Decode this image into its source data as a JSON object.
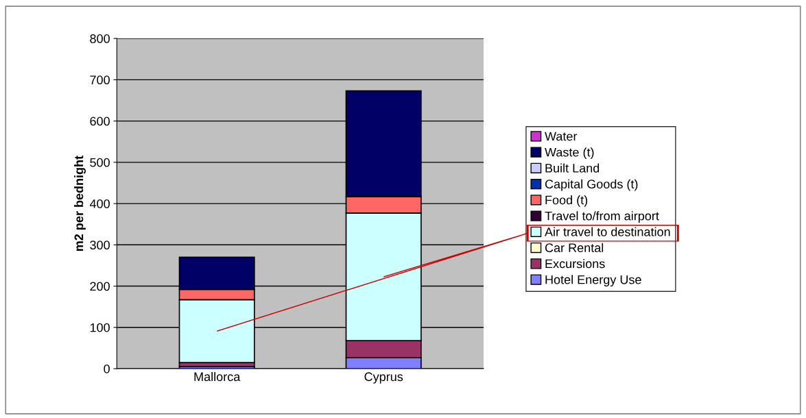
{
  "chart_data": {
    "type": "bar",
    "stacked": true,
    "ylabel": "m2 per bednight",
    "categories": [
      "Mallorca",
      "Cyprus"
    ],
    "series": [
      {
        "name": "Hotel Energy Use",
        "color": "#8080ff",
        "values": [
          5,
          27
        ]
      },
      {
        "name": "Excursions",
        "color": "#993366",
        "values": [
          10,
          41
        ]
      },
      {
        "name": "Car Rental",
        "color": "#ffffcc",
        "values": [
          0,
          0
        ]
      },
      {
        "name": "Air travel to destination",
        "color": "#ccffff",
        "values": [
          152,
          309
        ]
      },
      {
        "name": "Travel to/from airport",
        "color": "#330033",
        "values": [
          0,
          0
        ]
      },
      {
        "name": "Food (t)",
        "color": "#ff6666",
        "values": [
          25,
          40
        ]
      },
      {
        "name": "Capital Goods (t)",
        "color": "#0033aa",
        "values": [
          0,
          0
        ]
      },
      {
        "name": "Built Land",
        "color": "#ccccff",
        "values": [
          0,
          0
        ]
      },
      {
        "name": "Waste (t)",
        "color": "#000066",
        "values": [
          78,
          256
        ]
      },
      {
        "name": "Water",
        "color": "#cc33cc",
        "values": [
          0,
          0
        ]
      }
    ],
    "ylim": [
      0,
      800
    ],
    "yticks": [
      0,
      100,
      200,
      300,
      400,
      500,
      600,
      700,
      800
    ],
    "grid": "y",
    "legend": "right"
  }
}
